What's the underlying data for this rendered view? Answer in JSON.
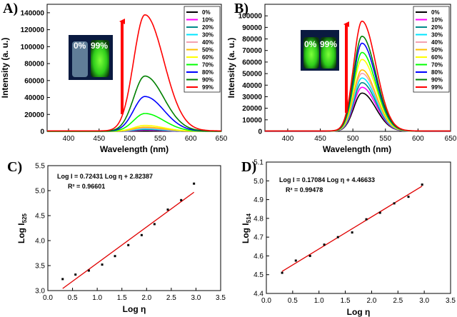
{
  "chart_data": [
    {
      "panel": "A)",
      "type": "line",
      "xlabel": "Wavelength (nm)",
      "ylabel": "Intensity (a. u.)",
      "xlim": [
        365,
        650
      ],
      "ylim": [
        0,
        150000
      ],
      "xticks": [
        400,
        450,
        500,
        550,
        600,
        650
      ],
      "yticks": [
        0,
        20000,
        40000,
        60000,
        80000,
        100000,
        120000,
        140000
      ],
      "peak_wavelength": 525,
      "fwhm": 58,
      "inset_labels": [
        "0%",
        "99%"
      ],
      "legend": [
        "0%",
        "10%",
        "20%",
        "30%",
        "40%",
        "50%",
        "60%",
        "70%",
        "80%",
        "90%",
        "99%"
      ],
      "series_colors": [
        "#000000",
        "#ff00ff",
        "#008b8b",
        "#00e5ff",
        "#f4a0b0",
        "#ffc000",
        "#ffff00",
        "#00ff00",
        "#0000ff",
        "#008000",
        "#ff0000"
      ],
      "peak_values": [
        800,
        1500,
        2200,
        3000,
        4000,
        5000,
        7000,
        21000,
        41000,
        65000,
        137000
      ]
    },
    {
      "panel": "B)",
      "type": "line",
      "xlabel": "Wavelength (nm)",
      "ylabel": "Intensity (a. u.)",
      "xlim": [
        365,
        650
      ],
      "ylim": [
        0,
        110000
      ],
      "xticks": [
        400,
        450,
        500,
        550,
        600,
        650
      ],
      "yticks": [
        0,
        10000,
        20000,
        30000,
        40000,
        50000,
        60000,
        70000,
        80000,
        90000,
        100000
      ],
      "peak_wavelength": 514,
      "fwhm": 40,
      "inset_labels": [
        "0%",
        "99%"
      ],
      "legend": [
        "0%",
        "10%",
        "20%",
        "30%",
        "40%",
        "50%",
        "60%",
        "70%",
        "80%",
        "90%",
        "99%"
      ],
      "series_colors": [
        "#000000",
        "#ff00ff",
        "#008b8b",
        "#00e5ff",
        "#f4a0b0",
        "#ffc000",
        "#ffff00",
        "#00ff00",
        "#0000ff",
        "#008000",
        "#ff0000"
      ],
      "peak_values": [
        33000,
        38000,
        42000,
        46000,
        50000,
        53000,
        62000,
        68000,
        76000,
        82000,
        95000
      ]
    },
    {
      "panel": "C)",
      "type": "scatter",
      "xlabel": "Log η",
      "ylabel": "Log I525",
      "ylabel_main": "Log I",
      "ylabel_sub": "525",
      "xlim": [
        0,
        3.5
      ],
      "ylim": [
        3.0,
        5.5
      ],
      "xticks": [
        0.0,
        0.5,
        1.0,
        1.5,
        2.0,
        2.5,
        3.0,
        3.5
      ],
      "yticks": [
        3.0,
        3.5,
        4.0,
        4.5,
        5.0,
        5.5
      ],
      "x": [
        0.3,
        0.56,
        0.83,
        1.1,
        1.36,
        1.63,
        1.9,
        2.16,
        2.43,
        2.7,
        2.96
      ],
      "y": [
        3.23,
        3.32,
        3.4,
        3.52,
        3.69,
        3.91,
        4.11,
        4.33,
        4.62,
        4.81,
        5.14
      ],
      "fit": {
        "slope": 0.72431,
        "intercept": 2.82387
      },
      "equation": "Log I = 0.72431 Log η + 2.82387",
      "r2": "R² = 0.96601"
    },
    {
      "panel": "D)",
      "type": "scatter",
      "xlabel": "Log η",
      "ylabel": "Log I514",
      "ylabel_main": "Log I",
      "ylabel_sub": "514",
      "xlim": [
        0,
        3.5
      ],
      "ylim": [
        4.4,
        5.1
      ],
      "xticks": [
        0.0,
        0.5,
        1.0,
        1.5,
        2.0,
        2.5,
        3.0,
        3.5
      ],
      "yticks": [
        4.4,
        4.5,
        4.6,
        4.7,
        4.8,
        4.9,
        5.0,
        5.1
      ],
      "x": [
        0.3,
        0.56,
        0.83,
        1.1,
        1.36,
        1.63,
        1.9,
        2.16,
        2.43,
        2.7,
        2.96
      ],
      "y": [
        4.51,
        4.575,
        4.6,
        4.66,
        4.7,
        4.725,
        4.795,
        4.83,
        4.88,
        4.915,
        4.98
      ],
      "fit": {
        "slope": 0.17084,
        "intercept": 4.46633
      },
      "equation": "Log I = 0.17084 Log η + 4.46633",
      "r2": "R² = 0.99478"
    }
  ]
}
